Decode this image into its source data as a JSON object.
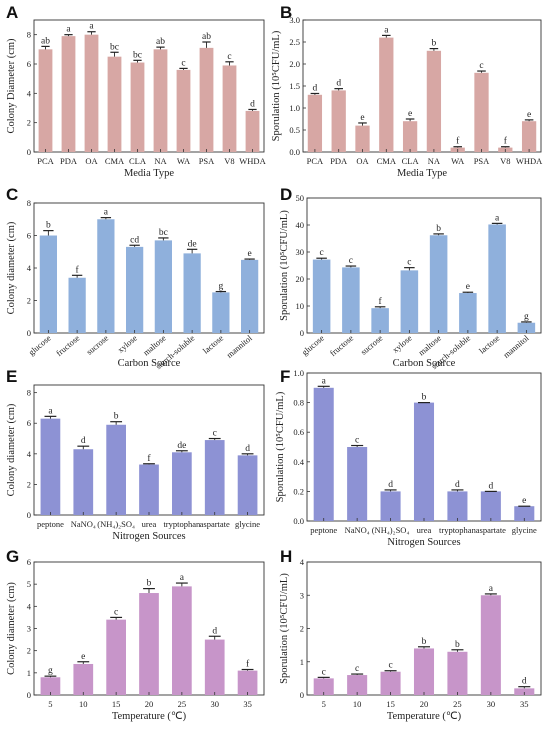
{
  "chart_data": [
    {
      "type": "bar",
      "panel": "A",
      "color": "#d7a7a4",
      "categories": [
        "PCA",
        "PDA",
        "OA",
        "CMA",
        "CLA",
        "NA",
        "WA",
        "PSA",
        "V8",
        "WHDA"
      ],
      "values": [
        7.0,
        7.9,
        8.0,
        6.5,
        6.1,
        7.0,
        5.6,
        7.1,
        5.9,
        2.8
      ],
      "errors": [
        0.2,
        0.1,
        0.2,
        0.3,
        0.15,
        0.15,
        0.1,
        0.4,
        0.25,
        0.1
      ],
      "letters": [
        "ab",
        "a",
        "a",
        "bc",
        "bc",
        "ab",
        "c",
        "ab",
        "c",
        "d"
      ],
      "xlabel": "Media Type",
      "ylabel": "Colony Diameter (cm)",
      "ylim": [
        0,
        9
      ],
      "yticks": [
        "0",
        "2",
        "4",
        "6",
        "8"
      ],
      "grid": false
    },
    {
      "type": "bar",
      "panel": "B",
      "color": "#d7a7a4",
      "categories": [
        "PCA",
        "PDA",
        "OA",
        "CMA",
        "CLA",
        "NA",
        "WA",
        "PSA",
        "V8",
        "WHDA"
      ],
      "values": [
        1.3,
        1.4,
        0.6,
        2.6,
        0.7,
        2.3,
        0.1,
        1.8,
        0.1,
        0.7
      ],
      "errors": [
        0.03,
        0.04,
        0.06,
        0.05,
        0.05,
        0.05,
        0.02,
        0.04,
        0.02,
        0.03
      ],
      "letters": [
        "d",
        "d",
        "e",
        "a",
        "e",
        "b",
        "f",
        "c",
        "f",
        "e"
      ],
      "xlabel": "Media Type",
      "ylabel": "Sporulation (10⁵CFU/mL)",
      "ylim": [
        0,
        3
      ],
      "yticks": [
        "0.0",
        "0.5",
        "1.0",
        "1.5",
        "2.0",
        "2.5",
        "3.0"
      ],
      "grid": false
    },
    {
      "type": "bar",
      "panel": "C",
      "color": "#8fb0dc",
      "categories": [
        "glucose",
        "fructose",
        "sucrose",
        "xylose",
        "maltose",
        "starch-soluble",
        "lactose",
        "mannitol"
      ],
      "values": [
        6.0,
        3.4,
        7.0,
        5.3,
        5.7,
        4.9,
        2.5,
        4.5
      ],
      "errors": [
        0.3,
        0.15,
        0.1,
        0.1,
        0.15,
        0.25,
        0.05,
        0.05
      ],
      "letters": [
        "b",
        "f",
        "a",
        "cd",
        "bc",
        "de",
        "g",
        "e"
      ],
      "xlabel": "Carbon Source",
      "ylabel": "Colony diameter (cm)",
      "ylim": [
        0,
        8
      ],
      "yticks": [
        "0",
        "2",
        "4",
        "6",
        "8"
      ],
      "grid": false
    },
    {
      "type": "bar",
      "panel": "D",
      "color": "#8fb0dc",
      "categories": [
        "glucose",
        "fructose",
        "sucrose",
        "xylose",
        "maltose",
        "starch-soluble",
        "lactose",
        "mannitol"
      ],
      "values": [
        27.2,
        24.3,
        9.2,
        23.2,
        36.2,
        14.8,
        40.2,
        3.8
      ],
      "errors": [
        0.5,
        0.5,
        0.5,
        1.0,
        0.5,
        0.3,
        0.4,
        0.3
      ],
      "letters": [
        "c",
        "c",
        "f",
        "c",
        "b",
        "e",
        "a",
        "g"
      ],
      "xlabel": "Carbon Source",
      "ylabel": "Sporulation (10⁵CFU/mL)",
      "ylim": [
        0,
        50
      ],
      "yticks": [
        "0",
        "10",
        "20",
        "30",
        "40",
        "50"
      ],
      "grid": false
    },
    {
      "type": "bar",
      "panel": "E",
      "color": "#8d92d4",
      "categories": [
        "peptone",
        "NaNO₄",
        "(NH₄)₂SO₄",
        "urea",
        "tryptophan",
        "aspartate",
        "glycine"
      ],
      "values": [
        6.3,
        4.3,
        5.9,
        3.3,
        4.1,
        4.9,
        3.9
      ],
      "errors": [
        0.15,
        0.2,
        0.2,
        0.05,
        0.1,
        0.1,
        0.1
      ],
      "letters": [
        "a",
        "d",
        "b",
        "f",
        "de",
        "c",
        "d"
      ],
      "xlabel": "Nitrogen Sources",
      "ylabel": "Colony diameter (cm)",
      "ylim": [
        0,
        8.5
      ],
      "yticks": [
        "0",
        "2",
        "4",
        "6",
        "8"
      ],
      "grid": false
    },
    {
      "type": "bar",
      "panel": "F",
      "color": "#8d92d4",
      "categories": [
        "peptone",
        "NaNO₄",
        "(NH₄)₂SO₄",
        "urea",
        "tryptophan",
        "aspartate",
        "glycine"
      ],
      "values": [
        0.9,
        0.5,
        0.2,
        0.8,
        0.2,
        0.2,
        0.1
      ],
      "errors": [
        0.01,
        0.01,
        0.01,
        0.0,
        0.01,
        0.0,
        0.0
      ],
      "letters": [
        "a",
        "c",
        "d",
        "b",
        "d",
        "d",
        "e"
      ],
      "xlabel": "Nitrogen Sources",
      "ylabel": "Sporulation (10⁵CFU/mL)",
      "ylim": [
        0,
        1.0
      ],
      "yticks": [
        "0.0",
        "0.2",
        "0.4",
        "0.6",
        "0.8",
        "1.0"
      ],
      "grid": false
    },
    {
      "type": "bar",
      "panel": "G",
      "color": "#c795c9",
      "categories": [
        "5",
        "10",
        "15",
        "20",
        "25",
        "30",
        "35"
      ],
      "values": [
        0.8,
        1.4,
        3.4,
        4.6,
        4.9,
        2.5,
        1.1
      ],
      "errors": [
        0.05,
        0.1,
        0.1,
        0.2,
        0.15,
        0.15,
        0.05
      ],
      "letters": [
        "g",
        "e",
        "c",
        "b",
        "a",
        "d",
        "f"
      ],
      "xlabel": "Temperature (℃)",
      "ylabel": "Colony diameter (cm)",
      "ylim": [
        0,
        6
      ],
      "yticks": [
        "0",
        "1",
        "2",
        "3",
        "4",
        "5",
        "6"
      ],
      "grid": false
    },
    {
      "type": "bar",
      "panel": "H",
      "color": "#c795c9",
      "categories": [
        "5",
        "10",
        "15",
        "20",
        "25",
        "30",
        "35"
      ],
      "values": [
        0.5,
        0.6,
        0.7,
        1.4,
        1.3,
        3.0,
        0.2
      ],
      "errors": [
        0.03,
        0.03,
        0.03,
        0.05,
        0.06,
        0.04,
        0.05
      ],
      "letters": [
        "c",
        "c",
        "c",
        "b",
        "b",
        "a",
        "d"
      ],
      "xlabel": "Temperature (℃)",
      "ylabel": "Sporulation (10⁵CFU/mL)",
      "ylim": [
        0,
        4
      ],
      "yticks": [
        "0",
        "1",
        "2",
        "3",
        "4"
      ],
      "grid": false
    }
  ]
}
